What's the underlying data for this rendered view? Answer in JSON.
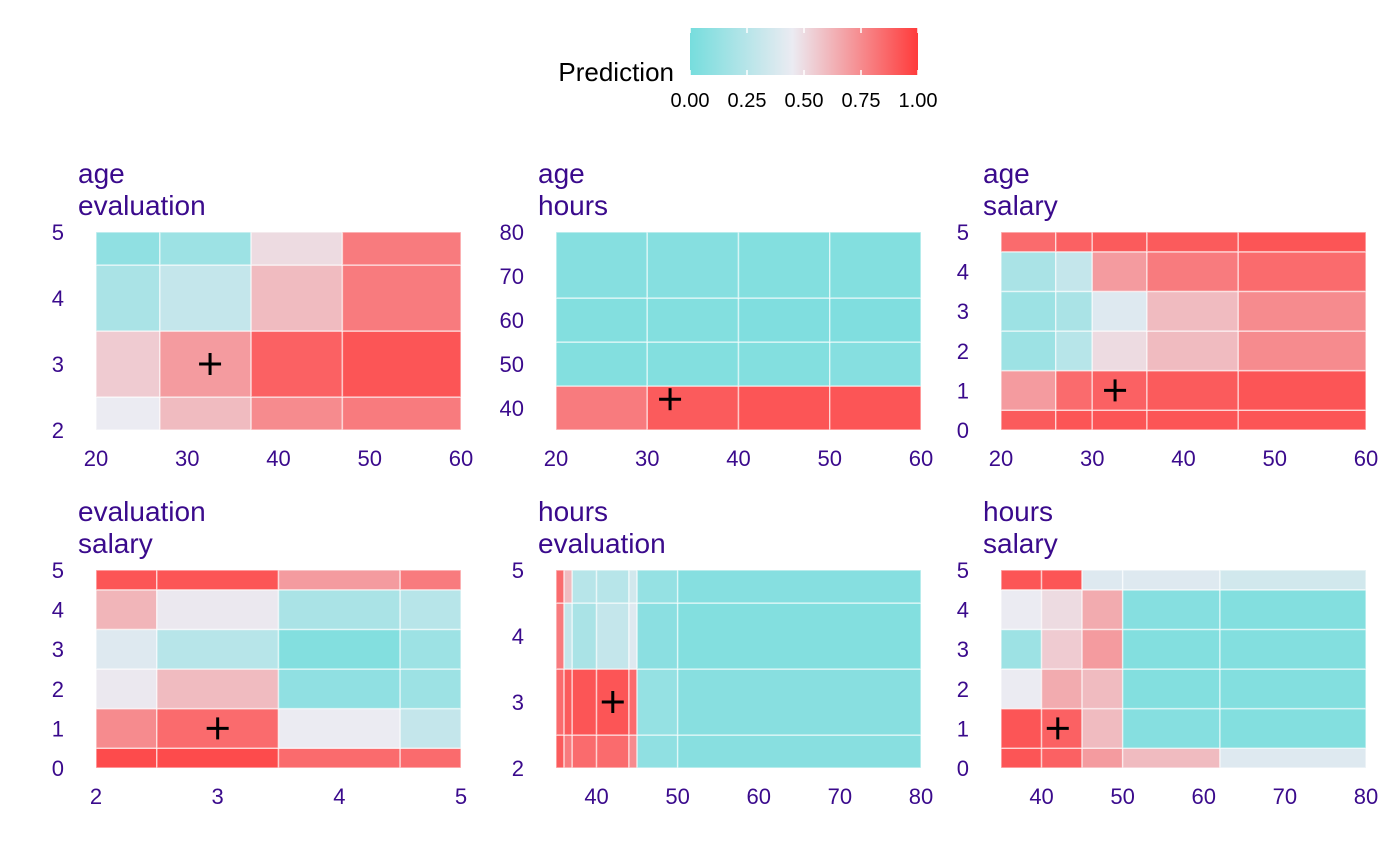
{
  "legend": {
    "title": "Prediction",
    "ticks": [
      "0.00",
      "0.25",
      "0.50",
      "0.75",
      "1.00"
    ],
    "tick_values": [
      0,
      0.25,
      0.5,
      0.75,
      1
    ],
    "range": [
      0,
      1
    ],
    "colors": {
      "low": "#76dddd",
      "mid": "#ebebf2",
      "high": "#ff3b3b"
    }
  },
  "chart_data": [
    {
      "type": "heatmap",
      "title_lines": [
        "age",
        "evaluation"
      ],
      "xlabel": "age",
      "ylabel": "evaluation",
      "xlim": [
        20,
        60
      ],
      "ylim": [
        2,
        5
      ],
      "xticks": [
        "20",
        "30",
        "40",
        "50",
        "60"
      ],
      "xtick_values": [
        20,
        30,
        40,
        50,
        60
      ],
      "yticks": [
        "2",
        "3",
        "4",
        "5"
      ],
      "ytick_values": [
        2,
        3,
        4,
        5
      ],
      "marker": {
        "x": 32.5,
        "y": 3
      },
      "grid": {
        "x_edges": [
          20,
          27,
          37,
          47,
          60
        ],
        "y_edges": [
          2,
          2.5,
          3.5,
          4.5,
          5
        ],
        "values": [
          [
            0.45,
            0.6,
            0.75,
            0.8
          ],
          [
            0.55,
            0.7,
            0.88,
            0.92
          ],
          [
            0.2,
            0.3,
            0.6,
            0.8
          ],
          [
            0.1,
            0.15,
            0.5,
            0.8
          ]
        ]
      }
    },
    {
      "type": "heatmap",
      "title_lines": [
        "age",
        "hours"
      ],
      "xlabel": "age",
      "ylabel": "hours",
      "xlim": [
        20,
        60
      ],
      "ylim": [
        35,
        80
      ],
      "xticks": [
        "20",
        "30",
        "40",
        "50",
        "60"
      ],
      "xtick_values": [
        20,
        30,
        40,
        50,
        60
      ],
      "yticks": [
        "40",
        "50",
        "60",
        "70",
        "80"
      ],
      "ytick_values": [
        40,
        50,
        60,
        70,
        80
      ],
      "marker": {
        "x": 32.5,
        "y": 42
      },
      "grid": {
        "x_edges": [
          20,
          30,
          40,
          50,
          60
        ],
        "y_edges": [
          35,
          45,
          55,
          65,
          80
        ],
        "values": [
          [
            0.8,
            0.9,
            0.92,
            0.92
          ],
          [
            0.05,
            0.05,
            0.05,
            0.06
          ],
          [
            0.05,
            0.05,
            0.04,
            0.04
          ],
          [
            0.06,
            0.06,
            0.05,
            0.05
          ]
        ]
      }
    },
    {
      "type": "heatmap",
      "title_lines": [
        "age",
        "salary"
      ],
      "xlabel": "age",
      "ylabel": "salary",
      "xlim": [
        20,
        60
      ],
      "ylim": [
        0,
        5
      ],
      "xticks": [
        "20",
        "30",
        "40",
        "50",
        "60"
      ],
      "xtick_values": [
        20,
        30,
        40,
        50,
        60
      ],
      "yticks": [
        "0",
        "1",
        "2",
        "3",
        "4",
        "5"
      ],
      "ytick_values": [
        0,
        1,
        2,
        3,
        4,
        5
      ],
      "marker": {
        "x": 32.5,
        "y": 1
      },
      "grid": {
        "x_edges": [
          20,
          26,
          30,
          36,
          46,
          60
        ],
        "y_edges": [
          0,
          0.5,
          1.5,
          2.5,
          3.5,
          4.5,
          5
        ],
        "values": [
          [
            0.9,
            0.92,
            0.92,
            0.92,
            0.92
          ],
          [
            0.7,
            0.85,
            0.88,
            0.9,
            0.92
          ],
          [
            0.15,
            0.25,
            0.5,
            0.6,
            0.75
          ],
          [
            0.15,
            0.2,
            0.4,
            0.6,
            0.75
          ],
          [
            0.2,
            0.3,
            0.7,
            0.8,
            0.85
          ],
          [
            0.85,
            0.88,
            0.9,
            0.9,
            0.92
          ]
        ]
      }
    },
    {
      "type": "heatmap",
      "title_lines": [
        "evaluation",
        "salary"
      ],
      "xlabel": "evaluation",
      "ylabel": "salary",
      "xlim": [
        2,
        5
      ],
      "ylim": [
        0,
        5
      ],
      "xticks": [
        "2",
        "3",
        "4",
        "5"
      ],
      "xtick_values": [
        2,
        3,
        4,
        5
      ],
      "yticks": [
        "0",
        "1",
        "2",
        "3",
        "4",
        "5"
      ],
      "ytick_values": [
        0,
        1,
        2,
        3,
        4,
        5
      ],
      "marker": {
        "x": 3,
        "y": 1
      },
      "grid": {
        "x_edges": [
          2,
          2.5,
          3.5,
          4.5,
          5
        ],
        "y_edges": [
          0,
          0.5,
          1.5,
          2.5,
          3.5,
          4.5,
          5
        ],
        "values": [
          [
            0.95,
            0.95,
            0.85,
            0.85
          ],
          [
            0.75,
            0.85,
            0.45,
            0.3
          ],
          [
            0.46,
            0.6,
            0.1,
            0.15
          ],
          [
            0.4,
            0.25,
            0.05,
            0.15
          ],
          [
            0.62,
            0.46,
            0.2,
            0.25
          ],
          [
            0.92,
            0.92,
            0.7,
            0.8
          ]
        ]
      }
    },
    {
      "type": "heatmap",
      "title_lines": [
        "hours",
        "evaluation"
      ],
      "xlabel": "hours",
      "ylabel": "evaluation",
      "xlim": [
        35,
        80
      ],
      "ylim": [
        2,
        5
      ],
      "xticks": [
        "40",
        "50",
        "60",
        "70",
        "80"
      ],
      "xtick_values": [
        40,
        50,
        60,
        70,
        80
      ],
      "yticks": [
        "2",
        "3",
        "4",
        "5"
      ],
      "ytick_values": [
        2,
        3,
        4,
        5
      ],
      "marker": {
        "x": 42,
        "y": 3
      },
      "grid": {
        "x_edges": [
          35,
          36,
          37,
          40,
          44,
          45,
          50,
          80
        ],
        "y_edges": [
          2,
          2.5,
          3.5,
          4.5,
          5
        ],
        "values": [
          [
            0.9,
            0.8,
            0.85,
            0.85,
            0.75,
            0.1,
            0.07
          ],
          [
            0.85,
            0.9,
            0.92,
            0.92,
            0.85,
            0.12,
            0.07
          ],
          [
            0.8,
            0.3,
            0.2,
            0.3,
            0.4,
            0.08,
            0.05
          ],
          [
            0.85,
            0.6,
            0.25,
            0.25,
            0.35,
            0.12,
            0.06
          ]
        ]
      }
    },
    {
      "type": "heatmap",
      "title_lines": [
        "hours",
        "salary"
      ],
      "xlabel": "hours",
      "ylabel": "salary",
      "xlim": [
        35,
        80
      ],
      "ylim": [
        0,
        5
      ],
      "xticks": [
        "40",
        "50",
        "60",
        "70",
        "80"
      ],
      "xtick_values": [
        40,
        50,
        60,
        70,
        80
      ],
      "yticks": [
        "0",
        "1",
        "2",
        "3",
        "4",
        "5"
      ],
      "ytick_values": [
        0,
        1,
        2,
        3,
        4,
        5
      ],
      "marker": {
        "x": 42,
        "y": 1
      },
      "grid": {
        "x_edges": [
          35,
          40,
          45,
          50,
          62,
          80
        ],
        "y_edges": [
          0,
          0.5,
          1.5,
          2.5,
          3.5,
          4.5,
          5
        ],
        "values": [
          [
            0.92,
            0.88,
            0.7,
            0.6,
            0.4
          ],
          [
            0.92,
            0.88,
            0.6,
            0.06,
            0.05
          ],
          [
            0.45,
            0.65,
            0.6,
            0.05,
            0.05
          ],
          [
            0.15,
            0.55,
            0.7,
            0.05,
            0.05
          ],
          [
            0.45,
            0.5,
            0.65,
            0.06,
            0.05
          ],
          [
            0.92,
            0.92,
            0.4,
            0.4,
            0.35
          ]
        ]
      }
    }
  ]
}
